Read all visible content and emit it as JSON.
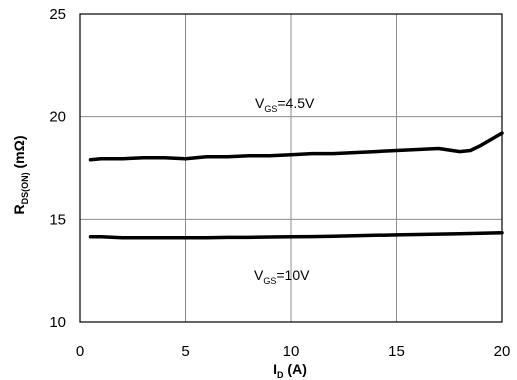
{
  "chart_data": {
    "type": "line",
    "xlabel": {
      "main": "I",
      "sub": "D",
      "unit": " (A)"
    },
    "ylabel": {
      "main": "R",
      "sub": "DS(ON)",
      "unit": " (mΩ)"
    },
    "xlim": [
      0,
      20
    ],
    "ylim": [
      10,
      25
    ],
    "x_ticks": [
      "0",
      "5",
      "10",
      "15",
      "20"
    ],
    "y_ticks": [
      "10",
      "15",
      "20",
      "25"
    ],
    "grid": true,
    "annotations": [
      {
        "id": "vgs45",
        "main": "V",
        "sub": "GS",
        "rest": "=4.5V"
      },
      {
        "id": "vgs10",
        "main": "V",
        "sub": "GS",
        "rest": "=10V"
      }
    ],
    "series": [
      {
        "x": [
          0.5,
          1,
          2,
          3,
          4,
          5,
          6,
          7,
          8,
          9,
          10,
          11,
          12,
          13,
          14,
          15,
          16,
          17,
          18,
          18.5,
          19,
          20
        ],
        "y": [
          17.9,
          17.95,
          17.95,
          18.0,
          18.0,
          17.95,
          18.05,
          18.05,
          18.1,
          18.1,
          18.15,
          18.2,
          18.2,
          18.25,
          18.3,
          18.35,
          18.4,
          18.45,
          18.3,
          18.35,
          18.6,
          19.2
        ]
      },
      {
        "x": [
          0.5,
          1,
          2,
          3,
          4,
          5,
          6,
          7,
          8,
          9,
          10,
          11,
          12,
          13,
          14,
          15,
          16,
          17,
          18,
          19,
          20
        ],
        "y": [
          14.15,
          14.15,
          14.1,
          14.1,
          14.1,
          14.1,
          14.1,
          14.12,
          14.12,
          14.14,
          14.15,
          14.16,
          14.18,
          14.2,
          14.22,
          14.24,
          14.26,
          14.28,
          14.3,
          14.32,
          14.35
        ]
      }
    ]
  }
}
